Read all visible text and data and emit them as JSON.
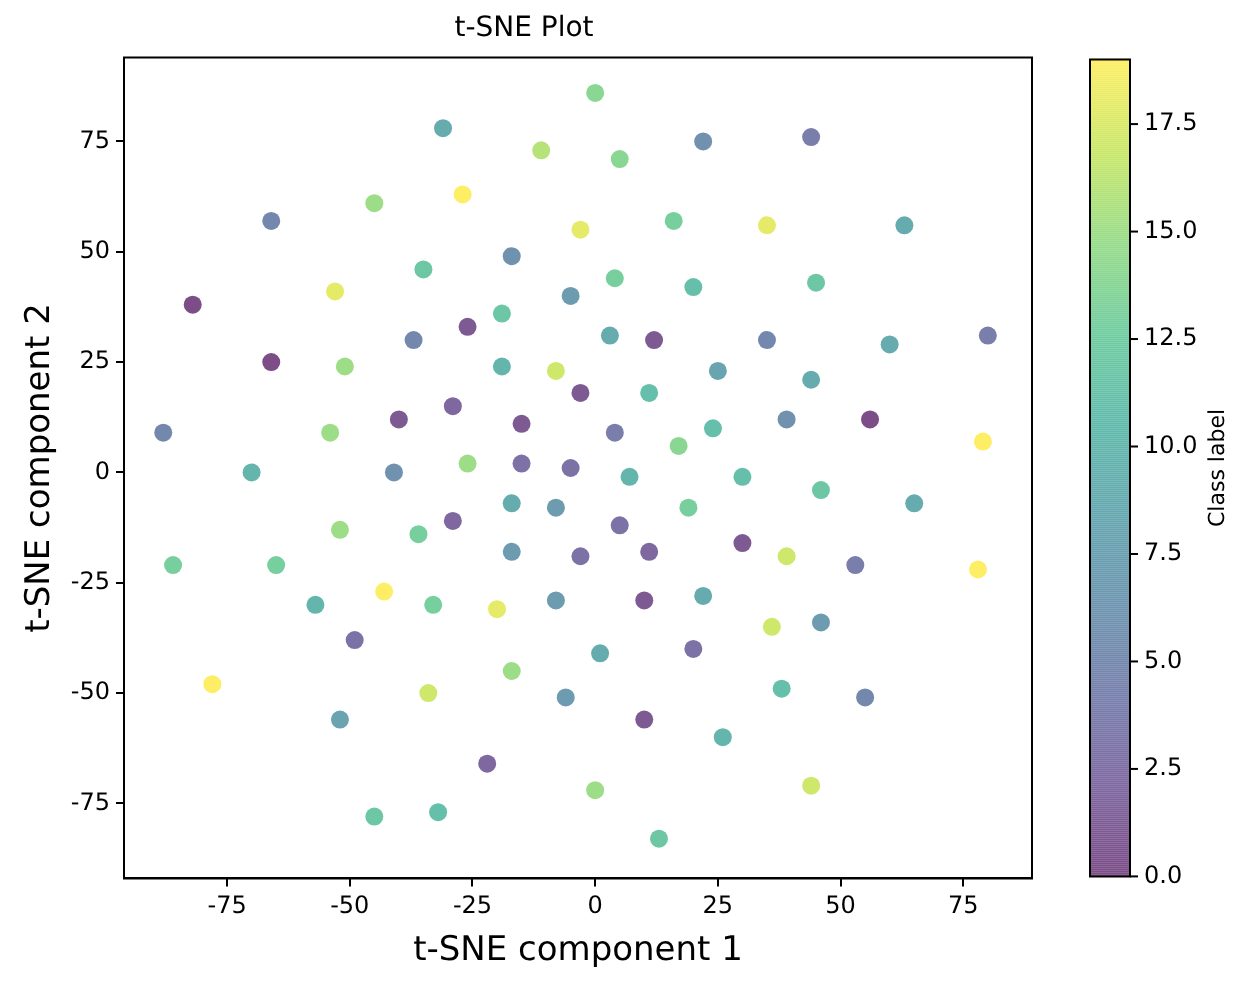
{
  "chart_data": {
    "type": "scatter",
    "title": "t-SNE Plot",
    "xlabel": "t-SNE component 1",
    "ylabel": "t-SNE component 2",
    "clabel": "Class label",
    "xlim": [
      -96,
      89
    ],
    "ylim": [
      -92,
      94
    ],
    "xticks": [
      -75,
      -50,
      -25,
      0,
      25,
      50,
      75
    ],
    "yticks": [
      -75,
      -50,
      -25,
      0,
      25,
      50,
      75
    ],
    "clim": [
      0,
      19
    ],
    "cticks": [
      {
        "value": 0,
        "label": "0.0"
      },
      {
        "value": 2.5,
        "label": "2.5"
      },
      {
        "value": 5,
        "label": "5.0"
      },
      {
        "value": 7.5,
        "label": "7.5"
      },
      {
        "value": 10,
        "label": "10.0"
      },
      {
        "value": 12.5,
        "label": "12.5"
      },
      {
        "value": 15,
        "label": "15.0"
      },
      {
        "value": 17.5,
        "label": "17.5"
      }
    ],
    "grid": false,
    "legend": false,
    "marker": "circle",
    "x": [
      0,
      -31,
      -11,
      22,
      44,
      5,
      -66,
      -45,
      -27,
      -3,
      16,
      35,
      63,
      -82,
      -53,
      -35,
      -17,
      -5,
      4,
      20,
      45,
      -66,
      -51,
      -37,
      -26,
      -19,
      3,
      12,
      -19,
      -8,
      25,
      35,
      44,
      60,
      80,
      -88,
      -40,
      -54,
      -29,
      -15,
      -3,
      11,
      4,
      17,
      24,
      39,
      56,
      79,
      -70,
      -41,
      -26,
      -15,
      -5,
      7,
      30,
      46,
      65,
      -17,
      -8,
      19,
      -29,
      5,
      -52,
      -36,
      -86,
      -65,
      -17,
      -3,
      11,
      30,
      39,
      53,
      78,
      -43,
      -57,
      -33,
      -20,
      -8,
      10,
      22,
      -49,
      1,
      20,
      36,
      46,
      -78,
      -17,
      -34,
      -6,
      38,
      55,
      -52,
      10,
      26,
      -22,
      0,
      44,
      -45,
      -32,
      13
    ],
    "values": [
      86,
      78,
      73,
      75,
      76,
      71,
      57,
      61,
      63,
      55,
      57,
      56,
      56,
      38,
      41,
      46,
      49,
      40,
      44,
      42,
      43,
      25,
      24,
      30,
      33,
      36,
      31,
      30,
      24,
      23,
      23,
      30,
      21,
      29,
      31,
      9,
      12,
      9,
      15,
      11,
      18,
      18,
      9,
      6,
      10,
      12,
      12,
      7,
      0,
      0,
      2,
      2,
      1,
      -1,
      -1,
      -4,
      -7,
      -7,
      -8,
      -8,
      -11,
      -12,
      -13,
      -14,
      -21,
      -21,
      -18,
      -19,
      -18,
      -16,
      -19,
      -21,
      -22,
      -27,
      -30,
      -30,
      -31,
      -29,
      -29,
      -28,
      -38,
      -41,
      -40,
      -35,
      -34,
      -48,
      -45,
      -50,
      -51,
      -49,
      -51,
      -56,
      -56,
      -60,
      -66,
      -72,
      -71,
      -78,
      -77,
      -83
    ],
    "cvalues": [
      14,
      9,
      16,
      6,
      4,
      14,
      5,
      15,
      19,
      18,
      13,
      18,
      9,
      0,
      18,
      12,
      6,
      7,
      13,
      11,
      12,
      0,
      15,
      5,
      1,
      12,
      9,
      1,
      10,
      17,
      8,
      5,
      9,
      9,
      4,
      5,
      1,
      15,
      2,
      1,
      1,
      11,
      4,
      14,
      11,
      6,
      0,
      19,
      10,
      6,
      15,
      3,
      3,
      10,
      11,
      12,
      9,
      9,
      7,
      13,
      2,
      3,
      15,
      13,
      13,
      13,
      7,
      3,
      2,
      1,
      17,
      4,
      19,
      19,
      10,
      13,
      18,
      7,
      1,
      9,
      3,
      9,
      3,
      17,
      7,
      19,
      15,
      17,
      7,
      11,
      5,
      8,
      1,
      10,
      2,
      15,
      17,
      12,
      11,
      12
    ]
  }
}
